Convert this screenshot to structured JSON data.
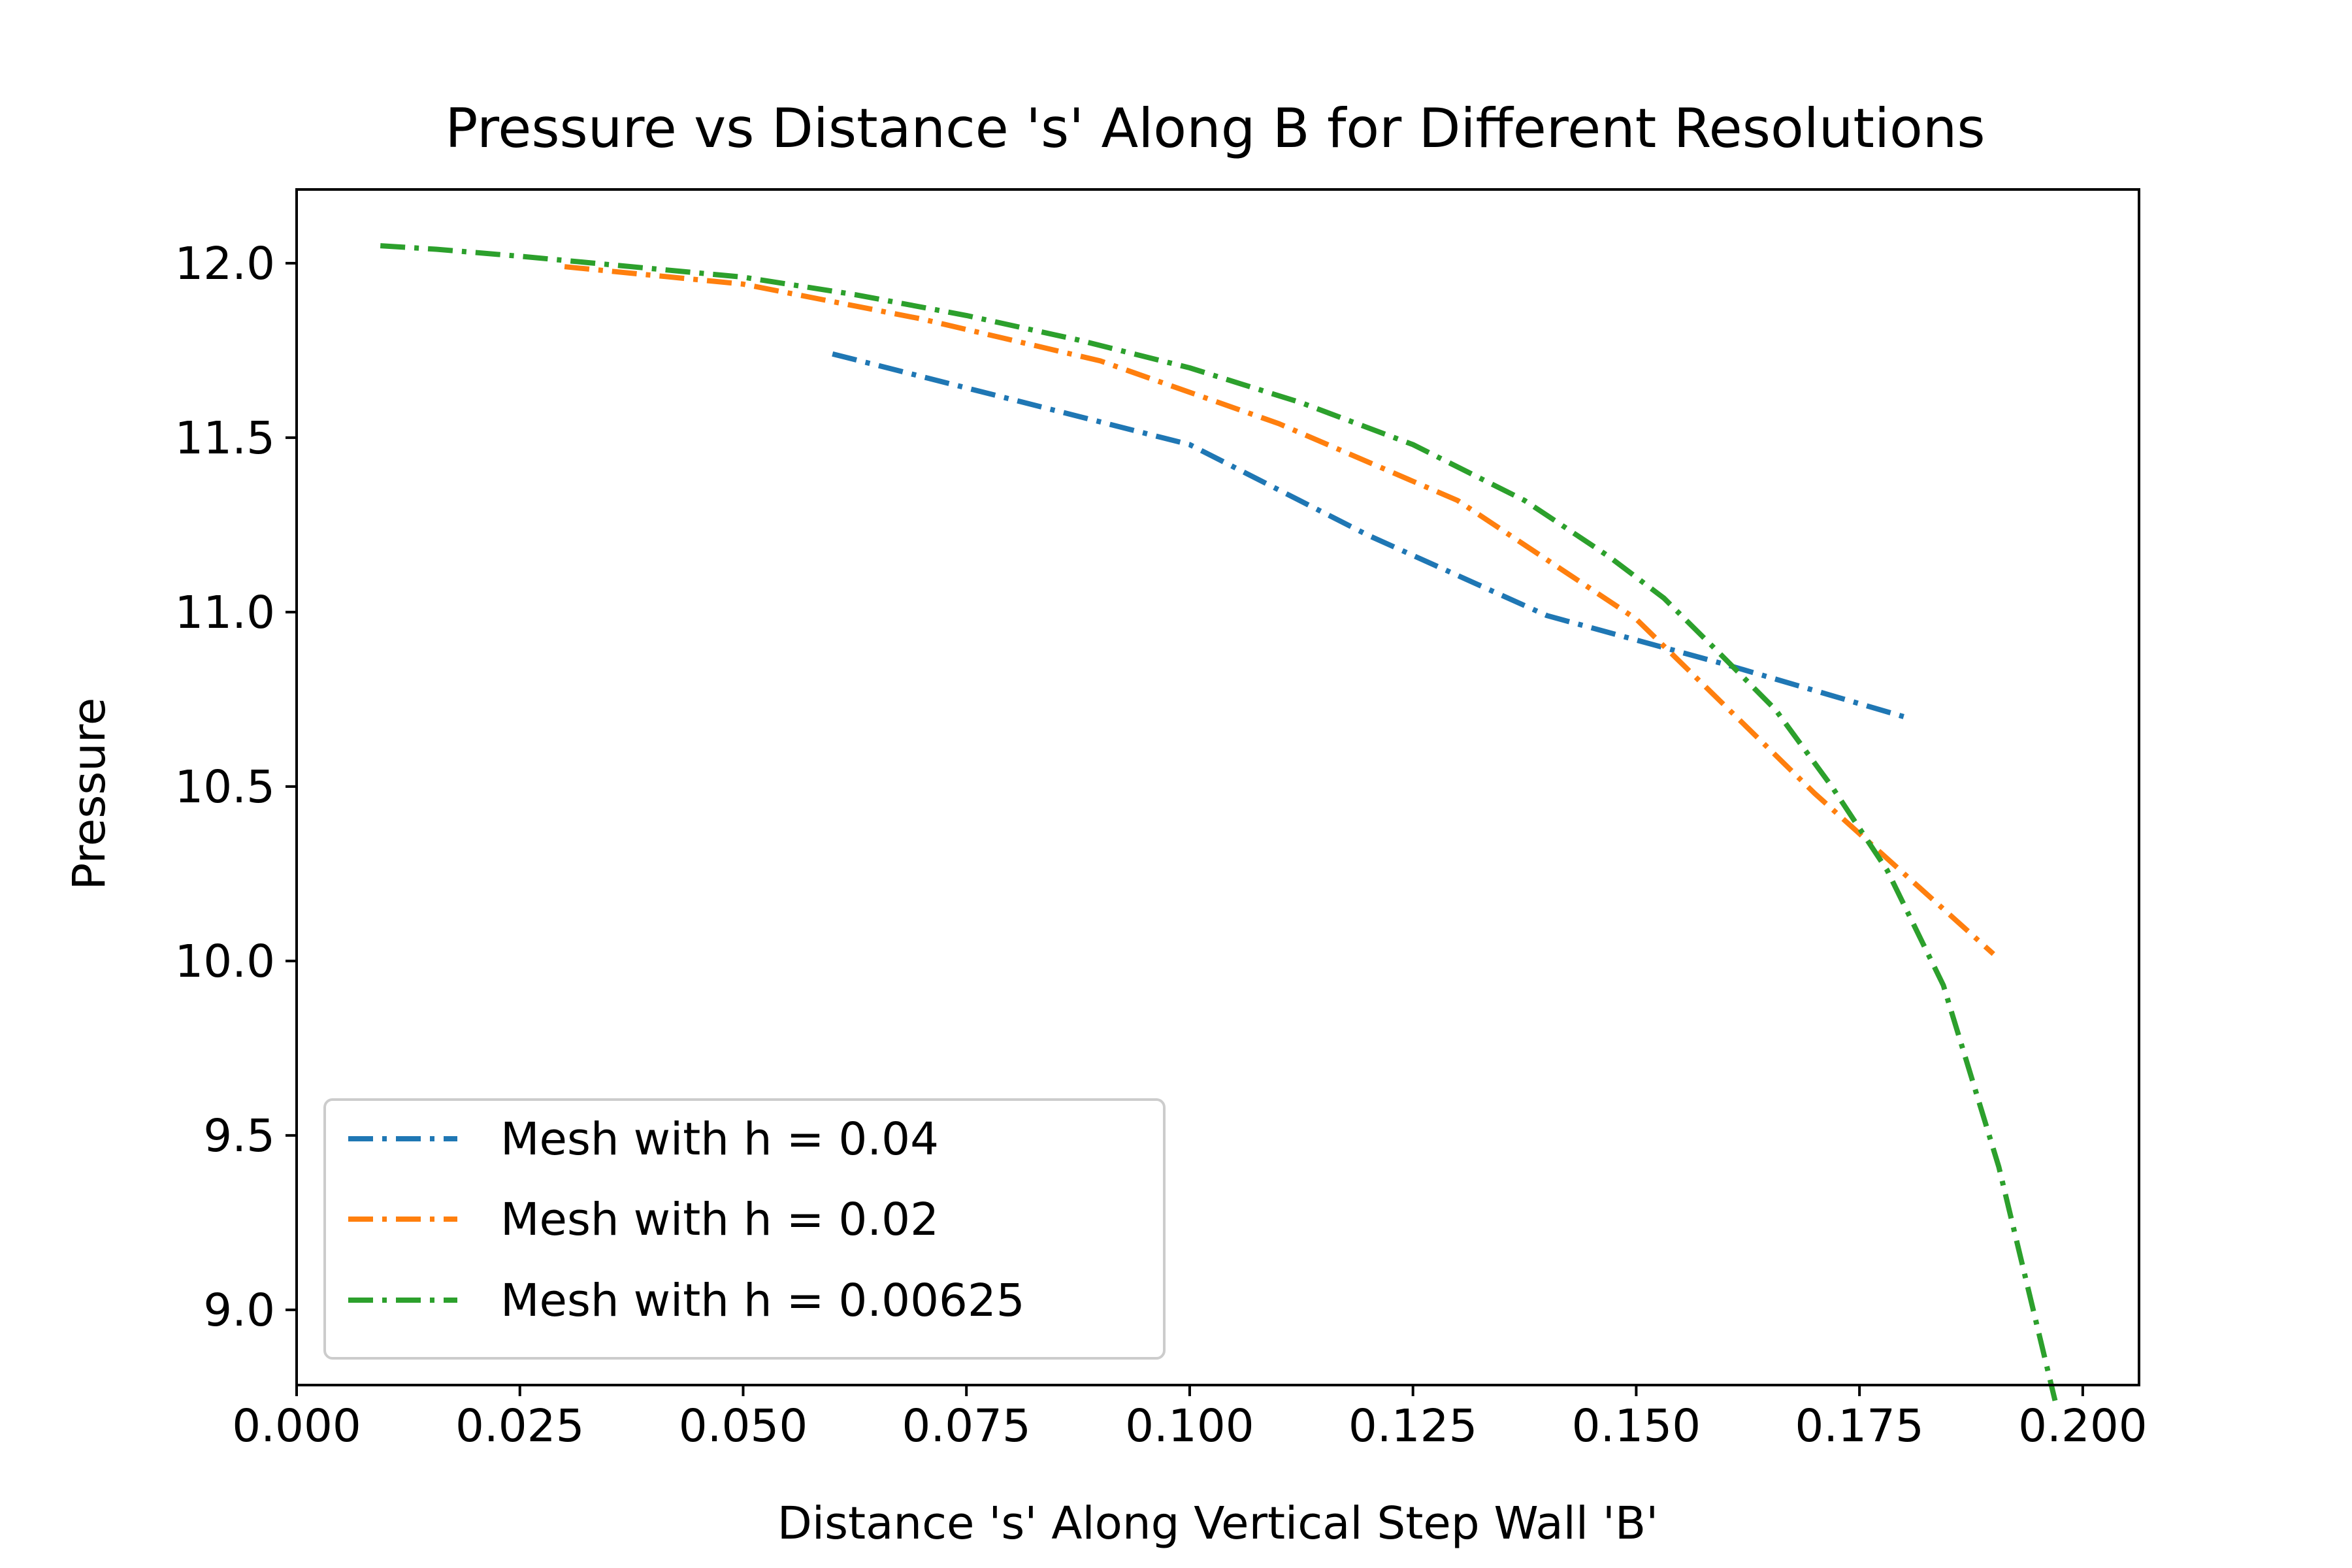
{
  "chart_data": {
    "type": "line",
    "title": "Pressure vs Distance 's' Along B for Different Resolutions",
    "xlabel": "Distance 's' Along Vertical Step Wall 'B'",
    "ylabel": "Pressure",
    "xlim": [
      0.0,
      0.2063
    ],
    "ylim": [
      8.7845,
      12.2113
    ],
    "x_ticks": [
      "0.000",
      "0.025",
      "0.050",
      "0.075",
      "0.100",
      "0.125",
      "0.150",
      "0.175",
      "0.200"
    ],
    "y_ticks": [
      "9.0",
      "9.5",
      "10.0",
      "10.5",
      "11.0",
      "11.5",
      "12.0"
    ],
    "grid": false,
    "legend_position": "lower-left",
    "line_style": "dash-dot",
    "series": [
      {
        "name": "Mesh with h = 0.04",
        "color": "#1f77b4",
        "x": [
          0.06,
          0.08,
          0.1,
          0.12,
          0.14,
          0.16,
          0.18
        ],
        "y": [
          11.74,
          11.61,
          11.48,
          11.22,
          10.99,
          10.85,
          10.7
        ]
      },
      {
        "name": "Mesh with h = 0.02",
        "color": "#ff7f0e",
        "x": [
          0.03,
          0.05,
          0.07,
          0.09,
          0.11,
          0.13,
          0.15,
          0.17,
          0.19
        ],
        "y": [
          11.99,
          11.94,
          11.84,
          11.72,
          11.54,
          11.32,
          10.98,
          10.48,
          10.02
        ]
      },
      {
        "name": "Mesh with h = 0.00625",
        "color": "#2ca02c",
        "x": [
          0.00938,
          0.01563,
          0.025,
          0.0375,
          0.05,
          0.0625,
          0.075,
          0.0875,
          0.1,
          0.1125,
          0.125,
          0.1375,
          0.1469,
          0.1531,
          0.1594,
          0.1656,
          0.1719,
          0.1781,
          0.1844,
          0.1906,
          0.1969
        ],
        "y": [
          12.05,
          12.04,
          12.02,
          11.99,
          11.96,
          11.91,
          11.85,
          11.78,
          11.7,
          11.6,
          11.48,
          11.32,
          11.16,
          11.04,
          10.88,
          10.72,
          10.5,
          10.26,
          9.93,
          9.41,
          8.74
        ]
      }
    ]
  }
}
